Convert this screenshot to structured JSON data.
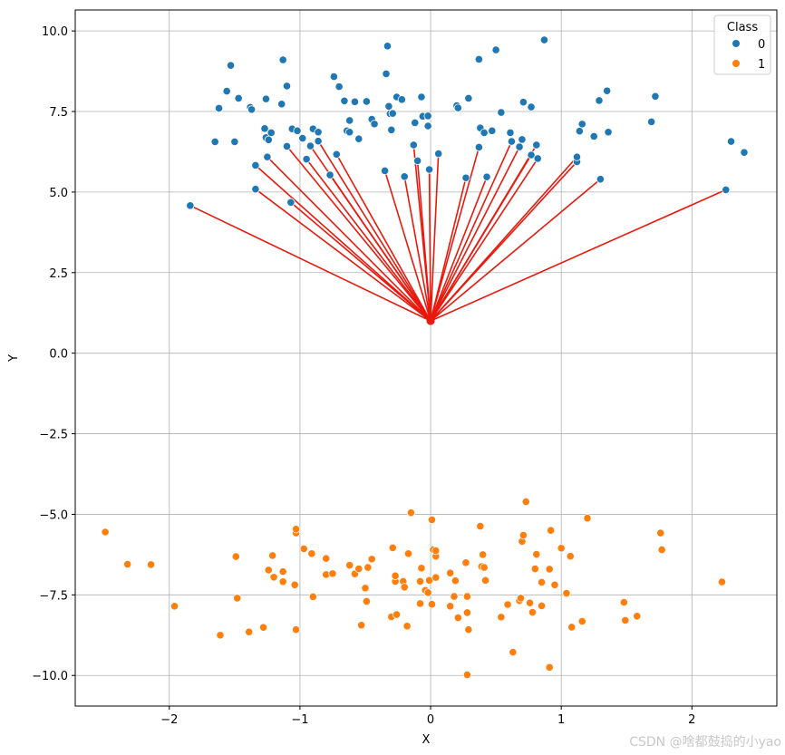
{
  "chart_data": {
    "type": "scatter",
    "xlabel": "X",
    "ylabel": "Y",
    "xlim": [
      -2.72,
      2.65
    ],
    "ylim": [
      -10.95,
      10.65
    ],
    "xticks": [
      -2,
      -1,
      0,
      1,
      2
    ],
    "xtick_labels": [
      "−2",
      "−1",
      "0",
      "1",
      "2"
    ],
    "yticks": [
      10.0,
      7.5,
      5.0,
      2.5,
      0.0,
      -2.5,
      -5.0,
      -7.5,
      -10.0
    ],
    "ytick_labels": [
      "10.0",
      "7.5",
      "5.0",
      "2.5",
      "0.0",
      "−2.5",
      "−5.0",
      "−7.5",
      "−10.0"
    ],
    "grid": true,
    "legend": {
      "title": "Class",
      "location": "top-right"
    },
    "center_point": {
      "x": 0.0,
      "y": 1.0,
      "color": "#e8190d"
    },
    "line_color": "#e8190d",
    "series": [
      {
        "name": "0",
        "color": "#1f77b4",
        "points": [
          [
            -1.62,
            7.6
          ],
          [
            -1.56,
            8.13
          ],
          [
            -1.53,
            8.93
          ],
          [
            -1.47,
            7.91
          ],
          [
            -1.38,
            7.63
          ],
          [
            -1.37,
            7.56
          ],
          [
            -1.26,
            7.89
          ],
          [
            -1.13,
            9.1
          ],
          [
            -1.14,
            7.73
          ],
          [
            -1.1,
            8.29
          ],
          [
            -1.27,
            6.97
          ],
          [
            -1.26,
            6.69
          ],
          [
            -1.22,
            6.84
          ],
          [
            -1.24,
            6.62
          ],
          [
            -1.06,
            6.96
          ],
          [
            -1.02,
            6.9
          ],
          [
            -0.98,
            6.67
          ],
          [
            -0.9,
            6.96
          ],
          [
            -0.86,
            6.86
          ],
          [
            -0.74,
            8.58
          ],
          [
            -0.7,
            8.27
          ],
          [
            -0.66,
            7.83
          ],
          [
            -0.58,
            7.8
          ],
          [
            -0.49,
            7.81
          ],
          [
            -0.34,
            8.67
          ],
          [
            -0.33,
            9.53
          ],
          [
            -0.32,
            7.66
          ],
          [
            -0.26,
            7.95
          ],
          [
            -0.22,
            7.87
          ],
          [
            -0.07,
            7.95
          ],
          [
            -0.62,
            7.22
          ],
          [
            -0.64,
            6.9
          ],
          [
            -0.62,
            6.86
          ],
          [
            -0.55,
            6.65
          ],
          [
            -0.45,
            7.26
          ],
          [
            -0.43,
            7.11
          ],
          [
            -0.31,
            7.43
          ],
          [
            -0.29,
            7.44
          ],
          [
            -0.12,
            7.15
          ],
          [
            -0.06,
            7.35
          ],
          [
            -0.02,
            7.36
          ],
          [
            -0.3,
            6.93
          ],
          [
            -0.02,
            7.05
          ],
          [
            0.2,
            7.68
          ],
          [
            0.21,
            7.61
          ],
          [
            0.29,
            7.91
          ],
          [
            0.37,
            9.12
          ],
          [
            0.5,
            9.41
          ],
          [
            0.54,
            7.47
          ],
          [
            0.38,
            6.99
          ],
          [
            0.41,
            6.84
          ],
          [
            0.47,
            6.9
          ],
          [
            0.61,
            6.84
          ],
          [
            0.71,
            7.79
          ],
          [
            0.77,
            7.64
          ],
          [
            0.87,
            9.72
          ],
          [
            0.7,
            6.63
          ],
          [
            0.81,
            6.46
          ],
          [
            0.62,
            6.57
          ],
          [
            0.68,
            6.4
          ],
          [
            1.14,
            6.89
          ],
          [
            1.16,
            7.11
          ],
          [
            1.25,
            6.73
          ],
          [
            1.29,
            7.84
          ],
          [
            1.35,
            8.14
          ],
          [
            1.36,
            6.86
          ],
          [
            1.69,
            7.18
          ],
          [
            1.72,
            7.97
          ],
          [
            2.3,
            6.57
          ],
          [
            2.4,
            6.23
          ],
          [
            -1.65,
            6.56
          ],
          [
            -1.5,
            6.56
          ],
          [
            -1.84,
            4.58
          ],
          [
            -1.34,
            5.83
          ],
          [
            -1.34,
            5.09
          ],
          [
            -1.25,
            6.09
          ],
          [
            -1.1,
            6.42
          ],
          [
            -1.07,
            4.68
          ],
          [
            -0.95,
            6.02
          ],
          [
            -0.92,
            6.43
          ],
          [
            -0.86,
            6.58
          ],
          [
            -0.77,
            5.53
          ],
          [
            -0.72,
            6.17
          ],
          [
            -0.35,
            5.66
          ],
          [
            -0.2,
            5.48
          ],
          [
            -0.13,
            6.46
          ],
          [
            -0.1,
            5.97
          ],
          [
            -0.01,
            5.7
          ],
          [
            0.06,
            6.19
          ],
          [
            0.27,
            5.44
          ],
          [
            0.37,
            6.39
          ],
          [
            0.43,
            5.47
          ],
          [
            0.77,
            6.15
          ],
          [
            0.82,
            6.04
          ],
          [
            1.12,
            5.94
          ],
          [
            1.12,
            6.09
          ],
          [
            1.3,
            5.4
          ],
          [
            2.26,
            5.07
          ]
        ]
      },
      {
        "name": "1",
        "color": "#ff7f0e",
        "points": [
          [
            -2.49,
            -5.55
          ],
          [
            -2.32,
            -6.55
          ],
          [
            -2.14,
            -6.56
          ],
          [
            -1.96,
            -7.85
          ],
          [
            -1.61,
            -8.75
          ],
          [
            -1.49,
            -6.31
          ],
          [
            -1.48,
            -7.6
          ],
          [
            -1.39,
            -8.65
          ],
          [
            -1.28,
            -8.51
          ],
          [
            -1.24,
            -6.73
          ],
          [
            -1.21,
            -6.28
          ],
          [
            -1.2,
            -6.95
          ],
          [
            -1.13,
            -7.09
          ],
          [
            -1.13,
            -6.78
          ],
          [
            -1.04,
            -7.19
          ],
          [
            -1.03,
            -5.58
          ],
          [
            -1.03,
            -5.46
          ],
          [
            -1.03,
            -8.58
          ],
          [
            -0.97,
            -6.07
          ],
          [
            -0.91,
            -6.22
          ],
          [
            -0.9,
            -7.56
          ],
          [
            -0.8,
            -6.87
          ],
          [
            -0.8,
            -6.37
          ],
          [
            -0.75,
            -6.84
          ],
          [
            -0.62,
            -6.58
          ],
          [
            -0.58,
            -6.85
          ],
          [
            -0.55,
            -6.69
          ],
          [
            -0.53,
            -8.44
          ],
          [
            -0.5,
            -7.29
          ],
          [
            -0.49,
            -7.7
          ],
          [
            -0.48,
            -6.65
          ],
          [
            -0.45,
            -6.39
          ],
          [
            -0.15,
            -4.95
          ],
          [
            -0.3,
            -8.18
          ],
          [
            -0.29,
            -6.04
          ],
          [
            -0.27,
            -7.08
          ],
          [
            -0.27,
            -6.91
          ],
          [
            -0.26,
            -8.11
          ],
          [
            -0.21,
            -7.08
          ],
          [
            -0.2,
            -7.26
          ],
          [
            -0.18,
            -8.47
          ],
          [
            -0.17,
            -6.22
          ],
          [
            -0.08,
            -7.77
          ],
          [
            -0.07,
            -6.67
          ],
          [
            -0.08,
            -7.08
          ],
          [
            -0.04,
            -7.36
          ],
          [
            -0.02,
            -7.43
          ],
          [
            -0.01,
            -7.05
          ],
          [
            0.01,
            -7.79
          ],
          [
            0.01,
            -5.17
          ],
          [
            0.02,
            -6.1
          ],
          [
            0.04,
            -6.3
          ],
          [
            0.04,
            -6.13
          ],
          [
            0.04,
            -6.96
          ],
          [
            0.15,
            -6.82
          ],
          [
            0.15,
            -7.85
          ],
          [
            0.18,
            -7.55
          ],
          [
            0.19,
            -7.06
          ],
          [
            0.21,
            -8.21
          ],
          [
            0.27,
            -6.5
          ],
          [
            0.28,
            -7.55
          ],
          [
            0.28,
            -8.05
          ],
          [
            0.28,
            -9.98
          ],
          [
            0.29,
            -8.58
          ],
          [
            0.38,
            -5.37
          ],
          [
            0.39,
            -6.62
          ],
          [
            0.4,
            -6.25
          ],
          [
            0.42,
            -7.05
          ],
          [
            0.41,
            -6.65
          ],
          [
            0.54,
            -8.19
          ],
          [
            0.59,
            -7.8
          ],
          [
            0.63,
            -9.28
          ],
          [
            0.68,
            -7.68
          ],
          [
            0.69,
            -7.6
          ],
          [
            0.7,
            -5.84
          ],
          [
            0.71,
            -5.65
          ],
          [
            0.73,
            -4.61
          ],
          [
            0.76,
            -7.75
          ],
          [
            0.78,
            -8.04
          ],
          [
            0.8,
            -6.69
          ],
          [
            0.81,
            -6.24
          ],
          [
            0.85,
            -7.11
          ],
          [
            0.85,
            -7.84
          ],
          [
            0.91,
            -9.75
          ],
          [
            0.91,
            -6.7
          ],
          [
            0.92,
            -5.5
          ],
          [
            0.95,
            -7.19
          ],
          [
            1.0,
            -6.05
          ],
          [
            1.04,
            -7.45
          ],
          [
            1.07,
            -6.3
          ],
          [
            1.08,
            -8.5
          ],
          [
            1.16,
            -8.32
          ],
          [
            1.2,
            -5.12
          ],
          [
            1.48,
            -7.73
          ],
          [
            1.49,
            -8.29
          ],
          [
            1.58,
            -8.16
          ],
          [
            1.76,
            -5.58
          ],
          [
            1.77,
            -6.1
          ],
          [
            2.23,
            -7.1
          ]
        ]
      }
    ],
    "connected_points": [
      [
        -1.84,
        4.58
      ],
      [
        -1.34,
        5.83
      ],
      [
        -1.34,
        5.09
      ],
      [
        -1.25,
        6.09
      ],
      [
        -1.1,
        6.42
      ],
      [
        -1.07,
        4.68
      ],
      [
        -0.95,
        6.02
      ],
      [
        -0.92,
        6.43
      ],
      [
        -0.86,
        6.58
      ],
      [
        -0.77,
        5.53
      ],
      [
        -0.72,
        6.17
      ],
      [
        -0.35,
        5.66
      ],
      [
        -0.2,
        5.48
      ],
      [
        -0.13,
        6.46
      ],
      [
        -0.1,
        5.97
      ],
      [
        -0.01,
        5.7
      ],
      [
        0.06,
        6.19
      ],
      [
        0.27,
        5.44
      ],
      [
        0.37,
        6.39
      ],
      [
        0.43,
        5.47
      ],
      [
        0.62,
        6.57
      ],
      [
        0.68,
        6.4
      ],
      [
        0.77,
        6.15
      ],
      [
        0.81,
        6.46
      ],
      [
        0.82,
        6.04
      ],
      [
        1.12,
        5.94
      ],
      [
        1.12,
        6.09
      ],
      [
        1.3,
        5.4
      ],
      [
        2.26,
        5.07
      ]
    ]
  },
  "watermark": "CSDN @啥都鼓捣的小yao"
}
